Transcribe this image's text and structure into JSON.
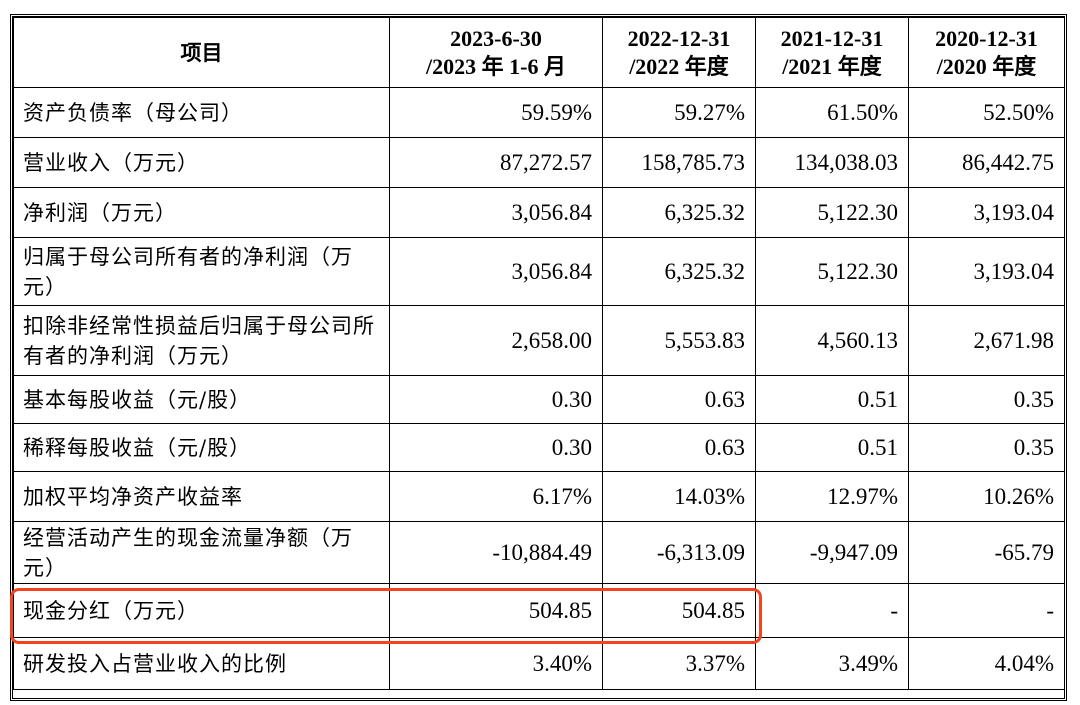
{
  "table": {
    "header": {
      "item": "项目",
      "periods": [
        {
          "line1": "2023-6-30",
          "line2": "/2023 年 1-6 月"
        },
        {
          "line1": "2022-12-31",
          "line2": "/2022 年度"
        },
        {
          "line1": "2021-12-31",
          "line2": "/2021 年度"
        },
        {
          "line1": "2020-12-31",
          "line2": "/2020 年度"
        }
      ]
    },
    "rows": [
      {
        "label": "资产负债率（母公司）",
        "values": [
          "59.59%",
          "59.27%",
          "61.50%",
          "52.50%"
        ]
      },
      {
        "label": "营业收入（万元）",
        "values": [
          "87,272.57",
          "158,785.73",
          "134,038.03",
          "86,442.75"
        ]
      },
      {
        "label": "净利润（万元）",
        "values": [
          "3,056.84",
          "6,325.32",
          "5,122.30",
          "3,193.04"
        ]
      },
      {
        "label": "归属于母公司所有者的净利润（万元）",
        "values": [
          "3,056.84",
          "6,325.32",
          "5,122.30",
          "3,193.04"
        ]
      },
      {
        "label": "扣除非经常性损益后归属于母公司所有者的净利润（万元）",
        "values": [
          "2,658.00",
          "5,553.83",
          "4,560.13",
          "2,671.98"
        ]
      },
      {
        "label": "基本每股收益（元/股）",
        "values": [
          "0.30",
          "0.63",
          "0.51",
          "0.35"
        ]
      },
      {
        "label": "稀释每股收益（元/股）",
        "values": [
          "0.30",
          "0.63",
          "0.51",
          "0.35"
        ]
      },
      {
        "label": "加权平均净资产收益率",
        "values": [
          "6.17%",
          "14.03%",
          "12.97%",
          "10.26%"
        ]
      },
      {
        "label": "经营活动产生的现金流量净额（万元）",
        "values": [
          "-10,884.49",
          "-6,313.09",
          "-9,947.09",
          "-65.79"
        ]
      },
      {
        "label": "现金分红（万元）",
        "values": [
          "504.85",
          "504.85",
          "-",
          "-"
        ]
      },
      {
        "label": "研发投入占营业收入的比例",
        "values": [
          "3.40%",
          "3.37%",
          "3.49%",
          "4.04%"
        ]
      }
    ]
  },
  "colors": {
    "highlight_box": "#f5421f",
    "border": "#000000",
    "background": "#ffffff"
  }
}
